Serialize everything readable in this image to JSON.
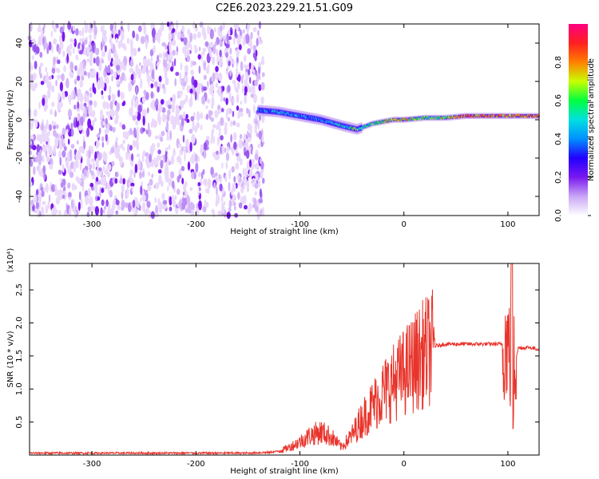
{
  "title": "C2E6.2023.229.21.51.G09",
  "colors": {
    "snr_line": "#e8342b",
    "axis": "#000000",
    "colorbar": [
      "#ffffff",
      "#c9a6f5",
      "#7a18f0",
      "#2200ff",
      "#0090ff",
      "#00e0e0",
      "#00ff40",
      "#c8ff00",
      "#ff8000",
      "#ff2020",
      "#ff0080"
    ]
  },
  "chart_data": [
    {
      "type": "heatmap",
      "xlabel": "Height of straight line (km)",
      "ylabel": "Frequency (Hz)",
      "xlim": [
        -360,
        130
      ],
      "ylim": [
        -50,
        50
      ],
      "xticks": [
        -300,
        -200,
        -100,
        0,
        100
      ],
      "yticks": [
        -40,
        -20,
        0,
        20,
        40
      ],
      "colorbar": {
        "label": "Normalized spectral amplitude",
        "range": [
          0,
          1
        ],
        "ticks": [
          "0.0",
          "0.2",
          "0.4",
          "0.6",
          "0.8"
        ]
      },
      "noise_region": {
        "x_range": [
          -360,
          -135
        ],
        "y_range": [
          -50,
          50
        ]
      },
      "signal_ridge": [
        {
          "x": -140,
          "y": 5,
          "amp": 0.4
        },
        {
          "x": -120,
          "y": 4,
          "amp": 0.45
        },
        {
          "x": -100,
          "y": 2,
          "amp": 0.4
        },
        {
          "x": -80,
          "y": 0,
          "amp": 0.35
        },
        {
          "x": -60,
          "y": -3,
          "amp": 0.5
        },
        {
          "x": -45,
          "y": -5,
          "amp": 0.6
        },
        {
          "x": -30,
          "y": -2,
          "amp": 0.55
        },
        {
          "x": -10,
          "y": 0,
          "amp": 0.75
        },
        {
          "x": 0,
          "y": 0,
          "amp": 0.7
        },
        {
          "x": 20,
          "y": 1,
          "amp": 0.6
        },
        {
          "x": 40,
          "y": 1,
          "amp": 0.65
        },
        {
          "x": 60,
          "y": 2,
          "amp": 0.85
        },
        {
          "x": 80,
          "y": 2,
          "amp": 0.85
        },
        {
          "x": 100,
          "y": 2,
          "amp": 0.8
        },
        {
          "x": 130,
          "y": 2,
          "amp": 0.8
        }
      ]
    },
    {
      "type": "line",
      "xlabel": "Height of straight line (km)",
      "ylabel": "SNR (10 * v/v)",
      "yscale_label": "(x10⁴)",
      "xlim": [
        -360,
        130
      ],
      "ylim": [
        0,
        2.9
      ],
      "xticks": [
        -300,
        -200,
        -100,
        0,
        100
      ],
      "yticks": [
        "0.5",
        "1.0",
        "1.5",
        "2.0",
        "2.5"
      ],
      "series": [
        {
          "x": [
            -360,
            -300,
            -200,
            -150,
            -130,
            -120,
            -110,
            -100,
            -90,
            -80,
            -70,
            -60,
            -50,
            -40,
            -30,
            -20,
            -10,
            0,
            10,
            20,
            30,
            40,
            60,
            80,
            95,
            100,
            103,
            105,
            110,
            120,
            130
          ],
          "y": [
            0.03,
            0.03,
            0.03,
            0.03,
            0.04,
            0.06,
            0.12,
            0.2,
            0.3,
            0.35,
            0.28,
            0.12,
            0.3,
            0.55,
            0.75,
            0.95,
            1.1,
            1.25,
            1.4,
            1.55,
            1.65,
            1.68,
            1.68,
            1.68,
            1.68,
            1.7,
            1.4,
            1.3,
            1.62,
            1.63,
            1.6
          ]
        }
      ]
    }
  ]
}
